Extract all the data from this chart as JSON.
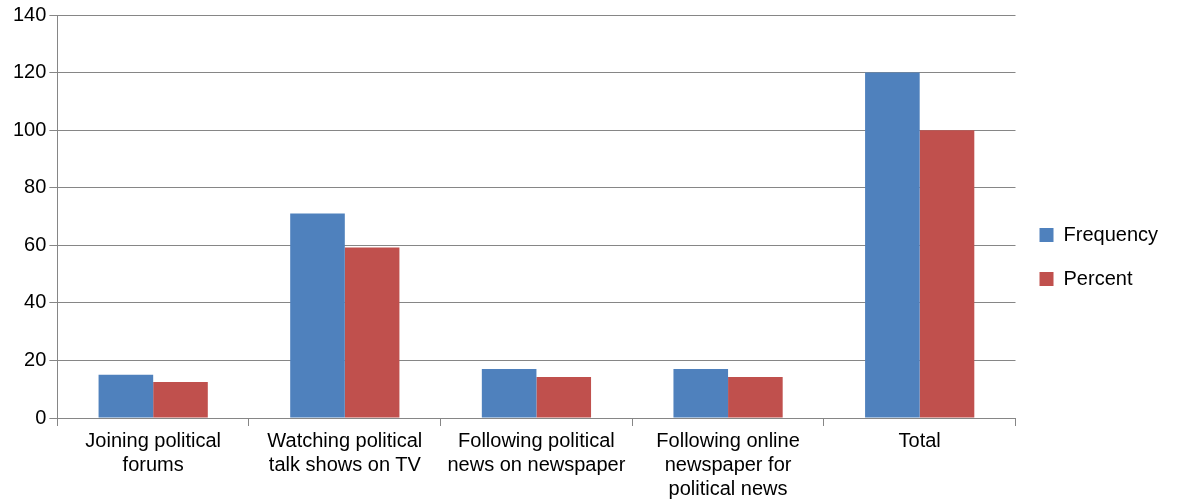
{
  "chart_data": {
    "type": "bar",
    "categories": [
      "Joining political forums",
      "Watching political talk shows on TV",
      "Following political news on newspaper",
      "Following online newspaper for political news",
      "Total"
    ],
    "series": [
      {
        "name": "Frequency",
        "color": "#4f81bd",
        "values": [
          15,
          71,
          17,
          17,
          120
        ]
      },
      {
        "name": "Percent",
        "color": "#c0504d",
        "values": [
          12.5,
          59.2,
          14.2,
          14.2,
          100
        ]
      }
    ],
    "ylim": [
      0,
      140
    ],
    "yticks": [
      0,
      20,
      40,
      60,
      80,
      100,
      120,
      140
    ],
    "grid": "y",
    "legend": "right"
  }
}
